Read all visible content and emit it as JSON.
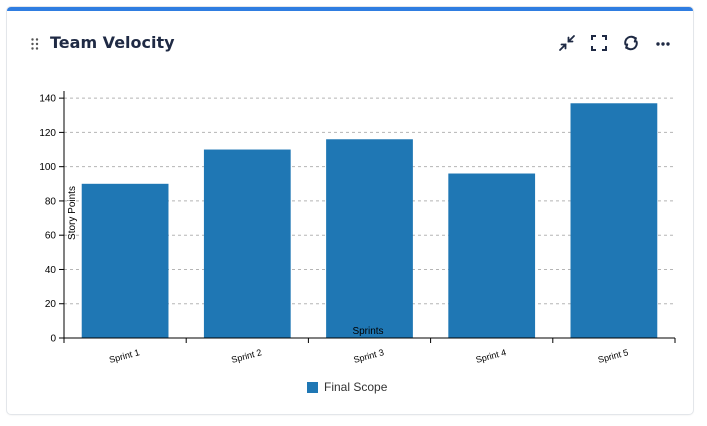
{
  "widget": {
    "title": "Team Velocity",
    "accent_color": "#2f7de1",
    "toolbar": [
      {
        "name": "collapse-icon"
      },
      {
        "name": "fullscreen-icon"
      },
      {
        "name": "refresh-icon"
      },
      {
        "name": "more-icon"
      }
    ]
  },
  "chart_data": {
    "type": "bar",
    "title": "",
    "categories": [
      "Sprint 1",
      "Sprint 2",
      "Sprint 3",
      "Sprint 4",
      "Sprint 5"
    ],
    "series": [
      {
        "name": "Final Scope",
        "color": "#1f77b4",
        "values": [
          90,
          110,
          116,
          96,
          137
        ]
      }
    ],
    "xlabel": "Sprints",
    "ylabel": "Story Points",
    "ylim": [
      0,
      150
    ],
    "yticks": [
      0,
      20,
      40,
      60,
      80,
      100,
      120,
      140
    ],
    "grid": true,
    "legend_position": "bottom"
  }
}
